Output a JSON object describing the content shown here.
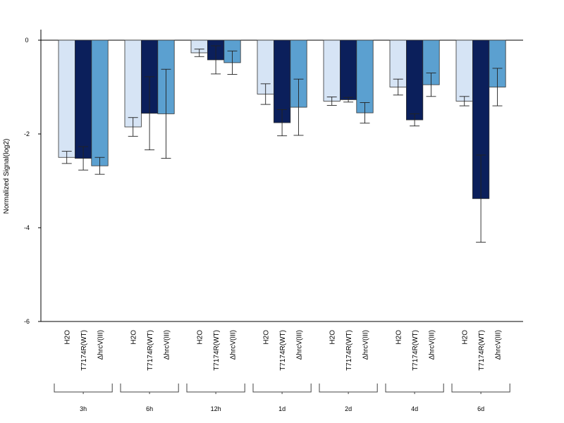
{
  "chart_data": {
    "type": "bar",
    "ylabel": "Normalized Signal(log2)",
    "ylim": [
      -6,
      0.2
    ],
    "yticks": [
      "0",
      "-2",
      "-4",
      "-6"
    ],
    "ytick_values": [
      0,
      -2,
      -4,
      -6
    ],
    "groups": [
      "3h",
      "6h",
      "12h",
      "1d",
      "2d",
      "4d",
      "6d"
    ],
    "series": [
      {
        "name": "H2O",
        "color": "#D6E4F5",
        "values": [
          -2.5,
          -1.85,
          -0.27,
          -1.15,
          -1.3,
          -1.0,
          -1.3
        ],
        "errors": [
          0.13,
          0.2,
          0.08,
          0.22,
          0.09,
          0.17,
          0.1
        ]
      },
      {
        "name": "T7174R(WT)",
        "color": "#0B1F5B",
        "values": [
          -2.52,
          -1.56,
          -0.42,
          -1.76,
          -1.27,
          -1.7,
          -3.38
        ],
        "errors": [
          0.25,
          0.78,
          0.3,
          0.28,
          0.05,
          0.13,
          0.93
        ]
      },
      {
        "name": "ΔhrcV(III)",
        "color": "#5BA0D0",
        "values": [
          -2.68,
          -1.57,
          -0.48,
          -1.43,
          -1.55,
          -0.95,
          -1.0
        ],
        "errors": [
          0.18,
          0.95,
          0.25,
          0.6,
          0.22,
          0.25,
          0.4
        ]
      }
    ]
  }
}
